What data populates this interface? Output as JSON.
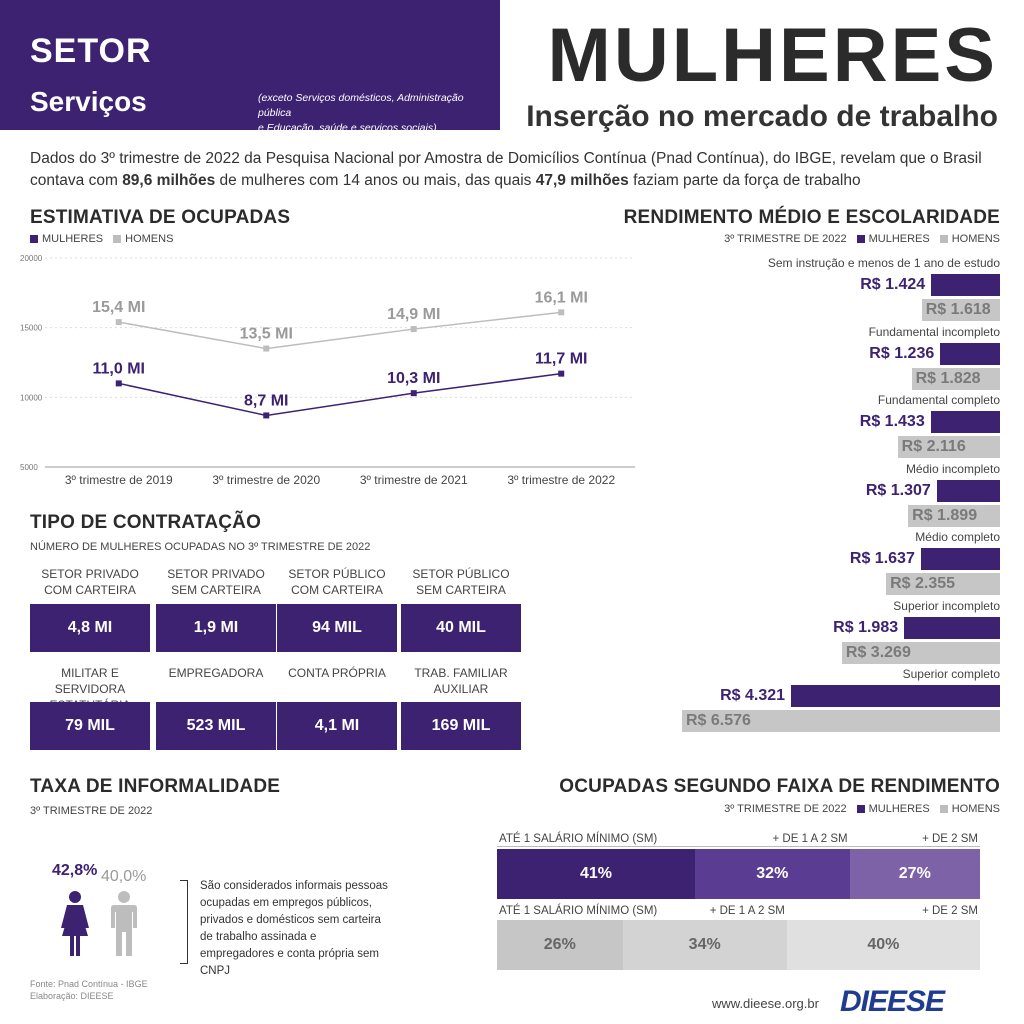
{
  "header": {
    "setor": "SETOR",
    "servicos": "Serviços",
    "note_line1": "(exceto Serviços domésticos, Administração pública",
    "note_line2": "e Educação, saúde e serviços sociais)",
    "title": "MULHERES",
    "subtitle": "Inserção no mercado de trabalho"
  },
  "intro": {
    "part1": "Dados do 3º trimestre de 2022 da Pesquisa Nacional por Amostra de Domicílios Contínua (Pnad Contínua), do IBGE, revelam que o Brasil contava com ",
    "bold1": "89,6 milhões",
    "part2": " de mulheres com 14 anos ou mais, das quais ",
    "bold2": "47,9 milhões",
    "part3": " faziam parte da força de trabalho"
  },
  "colors": {
    "purple": "#3d2272",
    "purple_mid": "#5a3d93",
    "purple_light": "#7d62a8",
    "gray": "#bdbdbd",
    "gray_dark": "#9a9a9a"
  },
  "chart_data": [
    {
      "type": "line",
      "title": "ESTIMATIVA DE OCUPADAS",
      "categories": [
        "3º trimestre de 2019",
        "3º trimestre de 2020",
        "3º trimestre de 2021",
        "3º trimestre de 2022"
      ],
      "series": [
        {
          "name": "MULHERES",
          "values": [
            11000,
            8700,
            10300,
            11700
          ],
          "labels": [
            "11,0 MI",
            "8,7 MI",
            "10,3 MI",
            "11,7 MI"
          ]
        },
        {
          "name": "HOMENS",
          "values": [
            15400,
            13500,
            14900,
            16100
          ],
          "labels": [
            "15,4 MI",
            "13,5 MI",
            "14,9 MI",
            "16,1 MI"
          ]
        }
      ],
      "yticks": [
        "20000",
        "15000",
        "10000",
        "5000"
      ],
      "ylim": [
        5000,
        20000
      ]
    },
    {
      "type": "bar",
      "title": "RENDIMENTO MÉDIO E ESCOLARIDADE",
      "subtitle": "3º TRIMESTRE DE 2022",
      "categories": [
        "Sem instrução e menos de 1 ano de estudo",
        "Fundamental incompleto",
        "Fundamental completo",
        "Médio incompleto",
        "Médio completo",
        "Superior incompleto",
        "Superior completo"
      ],
      "series": [
        {
          "name": "MULHERES",
          "values": [
            1424,
            1236,
            1433,
            1307,
            1637,
            1983,
            4321
          ],
          "labels": [
            "R$ 1.424",
            "R$ 1.236",
            "R$ 1.433",
            "R$ 1.307",
            "R$ 1.637",
            "R$ 1.983",
            "R$ 4.321"
          ]
        },
        {
          "name": "HOMENS",
          "values": [
            1618,
            1828,
            2116,
            1899,
            2355,
            3269,
            6576
          ],
          "labels": [
            "R$ 1.618",
            "R$ 1.828",
            "R$ 2.116",
            "R$ 1.899",
            "R$ 2.355",
            "R$ 3.269",
            "R$ 6.576"
          ]
        }
      ]
    },
    {
      "type": "bar",
      "title": "OCUPADAS SEGUNDO FAIXA DE RENDIMENTO",
      "subtitle": "3º TRIMESTRE DE 2022",
      "categories": [
        "ATÉ 1 SALÁRIO MÍNIMO (SM)",
        "+ DE 1 A 2 SM",
        "+ DE 2 SM"
      ],
      "series": [
        {
          "name": "MULHERES",
          "values": [
            41,
            32,
            27
          ],
          "labels": [
            "41%",
            "32%",
            "27%"
          ]
        },
        {
          "name": "HOMENS",
          "values": [
            26,
            34,
            40
          ],
          "labels": [
            "26%",
            "34%",
            "40%"
          ]
        }
      ]
    }
  ],
  "legend": {
    "women": "MULHERES",
    "men": "HOMENS"
  },
  "contratacao": {
    "title": "TIPO DE CONTRATAÇÃO",
    "subtitle": "NÚMERO DE MULHERES OCUPADAS NO 3º TRIMESTRE DE 2022",
    "items": [
      {
        "l1": "SETOR PRIVADO",
        "l2": "COM CARTEIRA",
        "value": "4,8 MI"
      },
      {
        "l1": "SETOR PRIVADO",
        "l2": "SEM CARTEIRA",
        "value": "1,9 MI"
      },
      {
        "l1": "SETOR PÚBLICO",
        "l2": "COM CARTEIRA",
        "value": "94 MIL"
      },
      {
        "l1": "SETOR PÚBLICO",
        "l2": "SEM CARTEIRA",
        "value": "40 MIL"
      },
      {
        "l1": "MILITAR E SERVIDORA",
        "l2": "ESTATUTÁRIA",
        "value": "79 MIL"
      },
      {
        "l1": "EMPREGADORA",
        "l2": "",
        "value": "523 MIL"
      },
      {
        "l1": "CONTA PRÓPRIA",
        "l2": "",
        "value": "4,1 MI"
      },
      {
        "l1": "TRAB. FAMILIAR",
        "l2": "AUXILIAR",
        "value": "169 MIL"
      }
    ]
  },
  "informalidade": {
    "title": "TAXA DE INFORMALIDADE",
    "subtitle": "3º TRIMESTRE DE 2022",
    "women_value": "42,8%",
    "men_value": "40,0%",
    "text": "São considerados informais pessoas ocupadas em empregos públicos, privados e domésticos sem carteira de trabalho assinada e empregadores e conta própria sem CNPJ"
  },
  "footer": {
    "source": "Fonte: Pnad Contínua - IBGE",
    "elaboracao": "Elaboração: DIEESE",
    "url": "www.dieese.org.br",
    "logo": "DIEESE"
  }
}
